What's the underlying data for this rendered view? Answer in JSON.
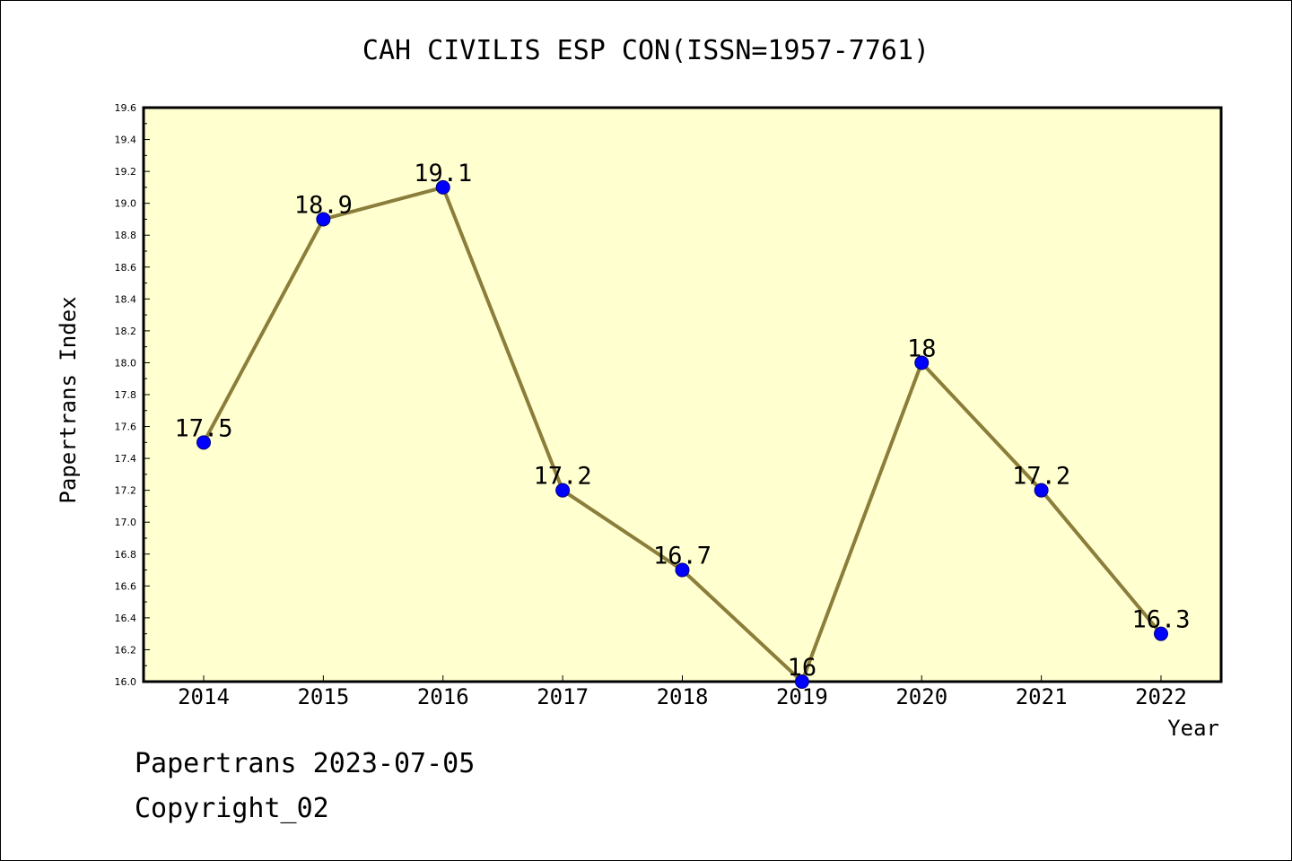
{
  "chart_data": {
    "type": "line",
    "title": "CAH CIVILIS ESP CON(ISSN=1957-7761)",
    "xlabel": "Year",
    "ylabel": "Papertrans Index",
    "categories": [
      "2014",
      "2015",
      "2016",
      "2017",
      "2018",
      "2019",
      "2020",
      "2021",
      "2022"
    ],
    "series": [
      {
        "values": [
          17.5,
          18.9,
          19.1,
          17.2,
          16.7,
          16.0,
          18.0,
          17.2,
          16.3
        ],
        "data_labels": [
          "17.5",
          "18.9",
          "19.1",
          "17.2",
          "16.7",
          "16",
          "18",
          "17.2",
          "16.3"
        ]
      }
    ],
    "ylim": [
      16.0,
      19.6
    ],
    "yticks": [
      "16.0",
      "16.2",
      "16.4",
      "16.6",
      "16.8",
      "17.0",
      "17.2",
      "17.4",
      "17.6",
      "17.8",
      "18.0",
      "18.2",
      "18.4",
      "18.6",
      "18.8",
      "19.0",
      "19.2",
      "19.4",
      "19.6"
    ],
    "grid": false,
    "colors": {
      "plot_background": "#ffffd0",
      "line": "#8b7d3a",
      "marker": "#0000ff"
    }
  },
  "footer": {
    "date_line": "Papertrans 2023-07-05",
    "copyright": "Copyright_02"
  }
}
